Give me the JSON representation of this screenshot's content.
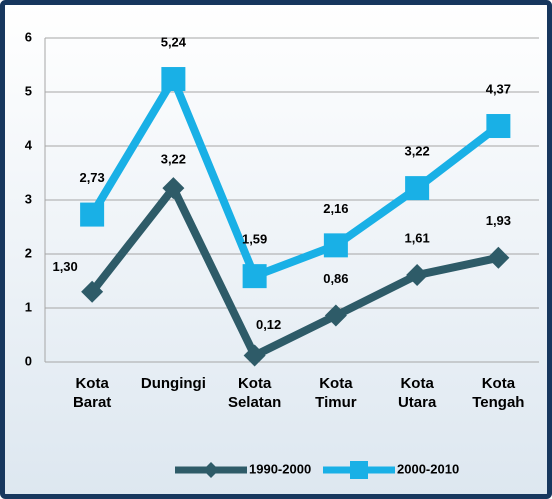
{
  "chart_data": {
    "type": "line",
    "categories": [
      "Kota Barat",
      "Dungingi",
      "Kota Selatan",
      "Kota Timur",
      "Kota Utara",
      "Kota Tengah"
    ],
    "series": [
      {
        "name": "1990-2000",
        "color": "#2e5b68",
        "marker": "diamond",
        "values": [
          1.3,
          3.22,
          0.12,
          0.86,
          1.61,
          1.93
        ],
        "value_labels": [
          "1,30",
          "3,22",
          "0,12",
          "0,86",
          "1,61",
          "1,93"
        ]
      },
      {
        "name": "2000-2010",
        "color": "#19b0e6",
        "marker": "square",
        "values": [
          2.73,
          5.24,
          1.59,
          2.16,
          3.22,
          4.37
        ],
        "value_labels": [
          "2,73",
          "5,24",
          "1,59",
          "2,16",
          "3,22",
          "4,37"
        ]
      }
    ],
    "ylim": [
      0,
      6
    ],
    "yticks": [
      0,
      1,
      2,
      3,
      4,
      5,
      6
    ],
    "grid": true,
    "legend": "bottom"
  }
}
